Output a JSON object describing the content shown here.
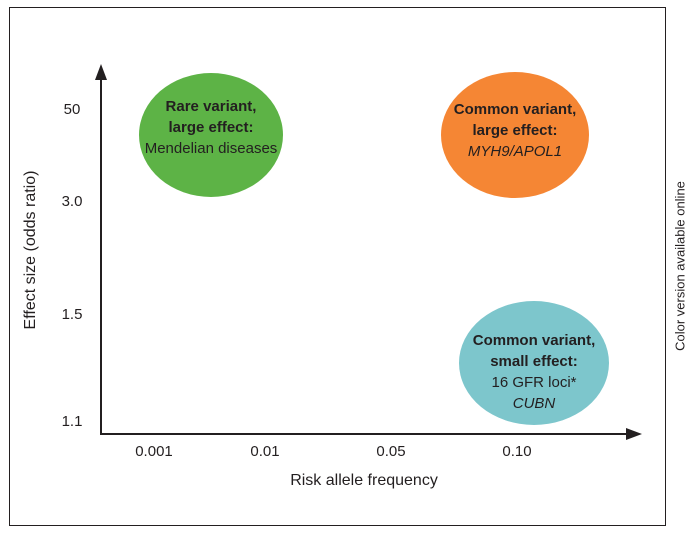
{
  "side_note": "Color version available online",
  "axes": {
    "x_title": "Risk allele frequency",
    "y_title": "Effect size (odds ratio)",
    "x_ticks": [
      "0.001",
      "0.01",
      "0.05",
      "0.10"
    ],
    "y_ticks": [
      "50",
      "3.0",
      "1.5",
      "1.1"
    ]
  },
  "bubbles": {
    "rare_large": {
      "line1": "Rare variant,",
      "line2": "large effect:",
      "line3": "Mendelian diseases",
      "color": "#5db346"
    },
    "common_large": {
      "line1": "Common variant,",
      "line2": "large effect:",
      "line3": "MYH9/APOL1",
      "color": "#f58634"
    },
    "common_small": {
      "line1": "Common variant,",
      "line2": "small effect:",
      "line3": "16 GFR loci*",
      "line4": "CUBN",
      "color": "#7dc6cc"
    }
  },
  "colors": {
    "ink": "#231f20"
  }
}
